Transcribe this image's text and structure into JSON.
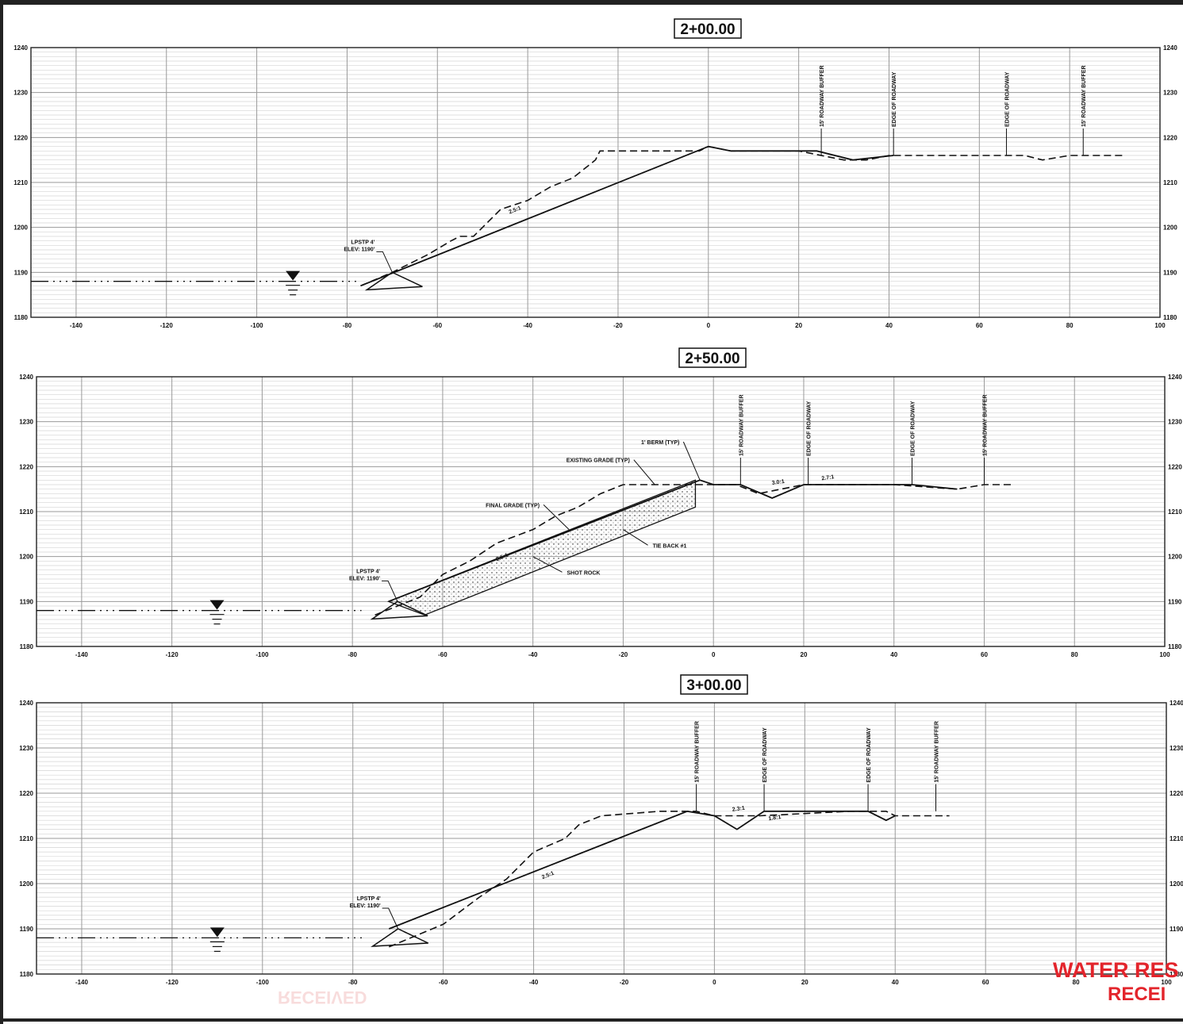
{
  "sections": [
    {
      "title": "2+00.00",
      "y_labels": [
        "1240",
        "1230",
        "1220",
        "1210",
        "1200",
        "1190",
        "1180"
      ],
      "x_labels": [
        "-140",
        "-120",
        "-100",
        "-80",
        "-60",
        "-40",
        "-20",
        "0",
        "20",
        "40",
        "60",
        "80",
        "100"
      ],
      "callouts": [
        "15' ROADWAY BUFFER",
        "EDGE OF ROADWAY",
        "EDGE OF ROADWAY",
        "15' ROADWAY BUFFER"
      ],
      "callout_stations": [
        25,
        41,
        66,
        83
      ],
      "lpstp_line1": "LPSTP 4'",
      "lpstp_line2": "ELEV: 1190'",
      "slope_labels": [
        "2.5:1"
      ],
      "extra_notes": [],
      "existing_grade": [
        [
          -77,
          1187
        ],
        [
          -70,
          1190
        ],
        [
          -62,
          1194
        ],
        [
          -57,
          1197
        ],
        [
          -55,
          1198
        ],
        [
          -52,
          1198
        ],
        [
          -50,
          1200
        ],
        [
          -46,
          1204
        ],
        [
          -40,
          1206
        ],
        [
          -35,
          1209
        ],
        [
          -30,
          1211
        ],
        [
          -25,
          1215
        ],
        [
          -24,
          1217
        ],
        [
          -2,
          1217
        ],
        [
          0,
          1218
        ],
        [
          5,
          1217
        ],
        [
          20,
          1217
        ],
        [
          30,
          1215
        ],
        [
          35,
          1215
        ],
        [
          40,
          1216
        ],
        [
          60,
          1216
        ],
        [
          70,
          1216
        ],
        [
          74,
          1215
        ],
        [
          80,
          1216
        ],
        [
          88,
          1216
        ],
        [
          92,
          1216
        ]
      ],
      "final_grade": [
        [
          -77,
          1187
        ],
        [
          0,
          1218
        ],
        [
          5,
          1217
        ],
        [
          18,
          1217
        ],
        [
          24,
          1217
        ],
        [
          32,
          1215
        ],
        [
          41,
          1216
        ]
      ],
      "water_level": 1188
    },
    {
      "title": "2+50.00",
      "y_labels": [
        "1240",
        "1230",
        "1220",
        "1210",
        "1200",
        "1190",
        "1180"
      ],
      "x_labels": [
        "-140",
        "-120",
        "-100",
        "-80",
        "-60",
        "-40",
        "-20",
        "0",
        "20",
        "40",
        "60",
        "80",
        "100"
      ],
      "callouts": [
        "15' ROADWAY BUFFER",
        "EDGE OF ROADWAY",
        "EDGE OF ROADWAY",
        "15' ROADWAY BUFFER"
      ],
      "callout_stations": [
        6,
        21,
        44,
        60
      ],
      "lpstp_line1": "LPSTP 4'",
      "lpstp_line2": "ELEV: 1190'",
      "slope_labels": [
        "2.5:1",
        "3.0:1",
        "2.7:1"
      ],
      "extra_notes": [
        "1' BERM (TYP)",
        "EXISTING GRADE (TYP)",
        "FINAL GRADE (TYP)",
        "TIE BACK #1",
        "SHOT ROCK"
      ],
      "existing_grade": [
        [
          -75,
          1187
        ],
        [
          -65,
          1191
        ],
        [
          -60,
          1196
        ],
        [
          -54,
          1199
        ],
        [
          -48,
          1203
        ],
        [
          -40,
          1206
        ],
        [
          -35,
          1209
        ],
        [
          -30,
          1211
        ],
        [
          -25,
          1214
        ],
        [
          -20,
          1216
        ],
        [
          -15,
          1216
        ],
        [
          -12,
          1216
        ],
        [
          -4,
          1216
        ],
        [
          0,
          1216
        ],
        [
          5,
          1216
        ],
        [
          10,
          1214
        ],
        [
          20,
          1216
        ],
        [
          40,
          1216
        ],
        [
          54,
          1215
        ],
        [
          60,
          1216
        ],
        [
          66,
          1216
        ]
      ],
      "final_grade": [
        [
          -72,
          1190
        ],
        [
          -3,
          1217
        ],
        [
          0,
          1216
        ],
        [
          6,
          1216
        ],
        [
          13,
          1213
        ],
        [
          20,
          1216
        ],
        [
          40,
          1216
        ],
        [
          44,
          1216
        ],
        [
          54,
          1215
        ]
      ],
      "water_level": 1188
    },
    {
      "title": "3+00.00",
      "y_labels": [
        "1240",
        "1230",
        "1220",
        "1210",
        "1200",
        "1190",
        "1180"
      ],
      "x_labels": [
        "-140",
        "-120",
        "-100",
        "-80",
        "-60",
        "-40",
        "-20",
        "0",
        "20",
        "40",
        "60",
        "80",
        "100"
      ],
      "callouts": [
        "15' ROADWAY BUFFER",
        "EDGE OF ROADWAY",
        "EDGE OF ROADWAY",
        "15' ROADWAY BUFFER"
      ],
      "callout_stations": [
        -4,
        11,
        34,
        49
      ],
      "lpstp_line1": "LPSTP 4'",
      "lpstp_line2": "ELEV: 1190'",
      "slope_labels": [
        "2.5:1",
        "2.3:1",
        "1.8:1"
      ],
      "extra_notes": [],
      "existing_grade": [
        [
          -72,
          1186
        ],
        [
          -60,
          1191
        ],
        [
          -52,
          1197
        ],
        [
          -46,
          1201
        ],
        [
          -40,
          1207
        ],
        [
          -33,
          1210
        ],
        [
          -30,
          1213
        ],
        [
          -25,
          1215
        ],
        [
          -12,
          1216
        ],
        [
          -4,
          1216
        ],
        [
          0,
          1215
        ],
        [
          5,
          1215
        ],
        [
          10,
          1215
        ],
        [
          30,
          1216
        ],
        [
          38,
          1216
        ],
        [
          40,
          1215
        ],
        [
          52,
          1215
        ]
      ],
      "final_grade": [
        [
          -72,
          1190
        ],
        [
          -6,
          1216
        ],
        [
          0,
          1215
        ],
        [
          5,
          1212
        ],
        [
          11,
          1216
        ],
        [
          34,
          1216
        ],
        [
          38,
          1214
        ],
        [
          40,
          1215
        ]
      ],
      "water_level": 1188
    }
  ],
  "stamp": {
    "line1": "WATER RES",
    "line2": "RECEI",
    "ghost": "RECEIVED"
  },
  "colors": {
    "line": "#111111",
    "grid_major": "#9a9a9a",
    "grid_minor": "#d4d4d4",
    "stamp": "#e3242b"
  }
}
